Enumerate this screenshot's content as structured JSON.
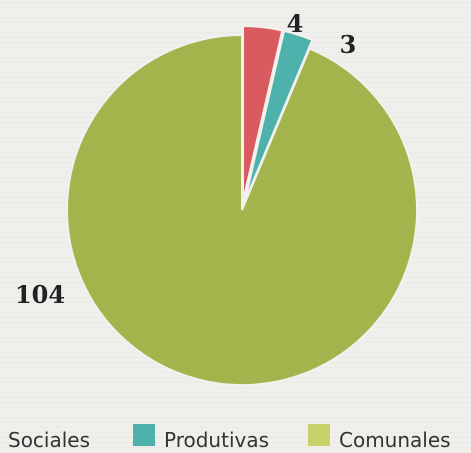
{
  "chart_data": {
    "type": "pie",
    "slices": [
      {
        "label": "Sociales",
        "value": 4,
        "color": "#d95b5f"
      },
      {
        "label": "Produtivas",
        "value": 3,
        "color": "#4fb1ab"
      },
      {
        "label": "Comunales",
        "value": 104,
        "color": "#a4b44c"
      }
    ],
    "data_labels": [
      "4",
      "3",
      "104"
    ],
    "legend": {
      "placement": "bottom",
      "items": [
        {
          "label": "Sociales",
          "color": ""
        },
        {
          "label": "Produtivas",
          "color": "#4fb1ab"
        },
        {
          "label": "Comunales",
          "color": "#c7d26a"
        }
      ]
    },
    "exploded_slices": [
      "Sociales",
      "Produtivas"
    ]
  }
}
